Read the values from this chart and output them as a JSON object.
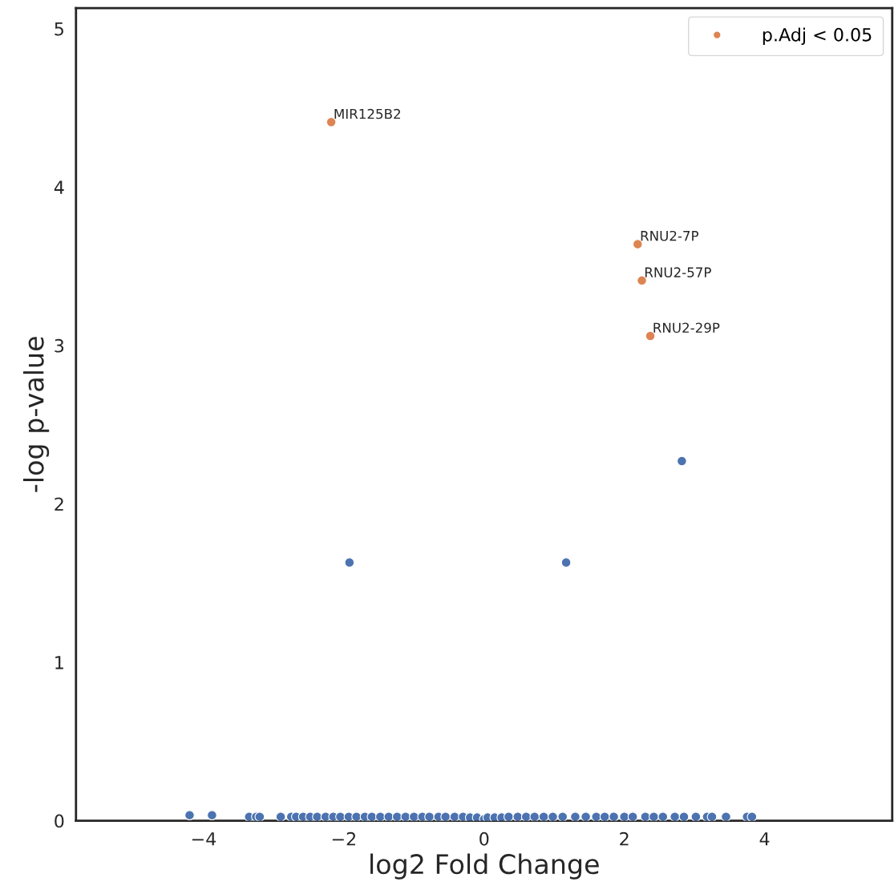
{
  "chart_data": {
    "type": "scatter",
    "xlabel": "log2 Fold Change",
    "ylabel": "-log p-value",
    "xlim": [
      -5.82,
      5.82
    ],
    "ylim": [
      0,
      5.13
    ],
    "xticks": [
      {
        "value": -4,
        "label": "−4"
      },
      {
        "value": -2,
        "label": "−2"
      },
      0,
      2,
      4
    ],
    "yticks": [
      0,
      1,
      2,
      3,
      4,
      5
    ],
    "grid": false,
    "legend": "top right",
    "marker": "circle",
    "series": [
      {
        "color": "#4c72b0",
        "x": [
          2.82,
          -1.92,
          1.17,
          -4.2,
          -3.88,
          -3.35,
          -3.25,
          -3.2,
          -2.9,
          -2.75,
          -2.68,
          -2.58,
          -2.48,
          -2.38,
          -2.26,
          -2.15,
          -2.05,
          -1.93,
          -1.82,
          -1.7,
          -1.6,
          -1.48,
          -1.36,
          -1.24,
          -1.12,
          -1.0,
          -0.88,
          -0.78,
          -0.65,
          -0.55,
          -0.42,
          -0.3,
          -0.2,
          -0.1,
          0.0,
          0.05,
          0.15,
          0.25,
          0.35,
          0.48,
          0.6,
          0.72,
          0.85,
          0.98,
          1.12,
          1.3,
          1.45,
          1.6,
          1.72,
          1.85,
          2.0,
          2.12,
          2.3,
          2.42,
          2.55,
          2.72,
          2.85,
          3.02,
          3.18,
          3.25,
          3.45,
          3.75,
          3.82
        ],
        "values": [
          2.27,
          1.63,
          1.63,
          0.035,
          0.035,
          0.025,
          0.025,
          0.025,
          0.025,
          0.025,
          0.025,
          0.025,
          0.025,
          0.025,
          0.025,
          0.025,
          0.025,
          0.025,
          0.025,
          0.025,
          0.025,
          0.025,
          0.025,
          0.025,
          0.025,
          0.025,
          0.025,
          0.025,
          0.025,
          0.025,
          0.025,
          0.025,
          0.02,
          0.02,
          0.01,
          0.02,
          0.02,
          0.02,
          0.025,
          0.025,
          0.025,
          0.025,
          0.025,
          0.025,
          0.025,
          0.025,
          0.025,
          0.025,
          0.025,
          0.025,
          0.025,
          0.025,
          0.025,
          0.025,
          0.025,
          0.025,
          0.025,
          0.025,
          0.025,
          0.025,
          0.025,
          0.025,
          0.025
        ]
      },
      {
        "name": "p.Adj < 0.05",
        "color": "#dd8452",
        "x": [
          -2.18,
          2.19,
          2.25,
          2.37
        ],
        "values": [
          4.41,
          3.64,
          3.41,
          3.06
        ]
      }
    ],
    "annotations": [
      {
        "text": "MIR125B2",
        "x": -2.18,
        "y": 4.41
      },
      {
        "text": "RNU2-7P",
        "x": 2.19,
        "y": 3.64
      },
      {
        "text": "RNU2-57P",
        "x": 2.25,
        "y": 3.41
      },
      {
        "text": "RNU2-29P",
        "x": 2.37,
        "y": 3.06
      }
    ]
  }
}
